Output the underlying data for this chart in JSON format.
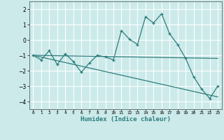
{
  "xlabel": "Humidex (Indice chaleur)",
  "ylabel": "",
  "background_color": "#cceaea",
  "grid_color": "#ffffff",
  "line_color": "#2e7d7d",
  "xlim": [
    -0.5,
    23.5
  ],
  "ylim": [
    -4.5,
    2.5
  ],
  "yticks": [
    -4,
    -3,
    -2,
    -1,
    0,
    1,
    2
  ],
  "xticks": [
    0,
    1,
    2,
    3,
    4,
    5,
    6,
    7,
    8,
    9,
    10,
    11,
    12,
    13,
    14,
    15,
    16,
    17,
    18,
    19,
    20,
    21,
    22,
    23
  ],
  "series1_x": [
    0,
    1,
    2,
    3,
    4,
    5,
    6,
    7,
    8,
    9,
    10,
    11,
    12,
    13,
    14,
    15,
    16,
    17,
    18,
    19,
    20,
    21,
    22,
    23
  ],
  "series1_y": [
    -1.0,
    -1.3,
    -0.7,
    -1.6,
    -0.9,
    -1.4,
    -2.1,
    -1.5,
    -1.0,
    -1.1,
    -1.3,
    0.6,
    0.05,
    -0.3,
    1.5,
    1.1,
    1.7,
    0.4,
    -0.3,
    -1.2,
    -2.4,
    -3.2,
    -3.8,
    -3.0
  ],
  "series2_x": [
    0,
    23
  ],
  "series2_y": [
    -1.0,
    -1.2
  ],
  "series3_x": [
    0,
    23
  ],
  "series3_y": [
    -1.0,
    -3.7
  ],
  "marker": "+"
}
